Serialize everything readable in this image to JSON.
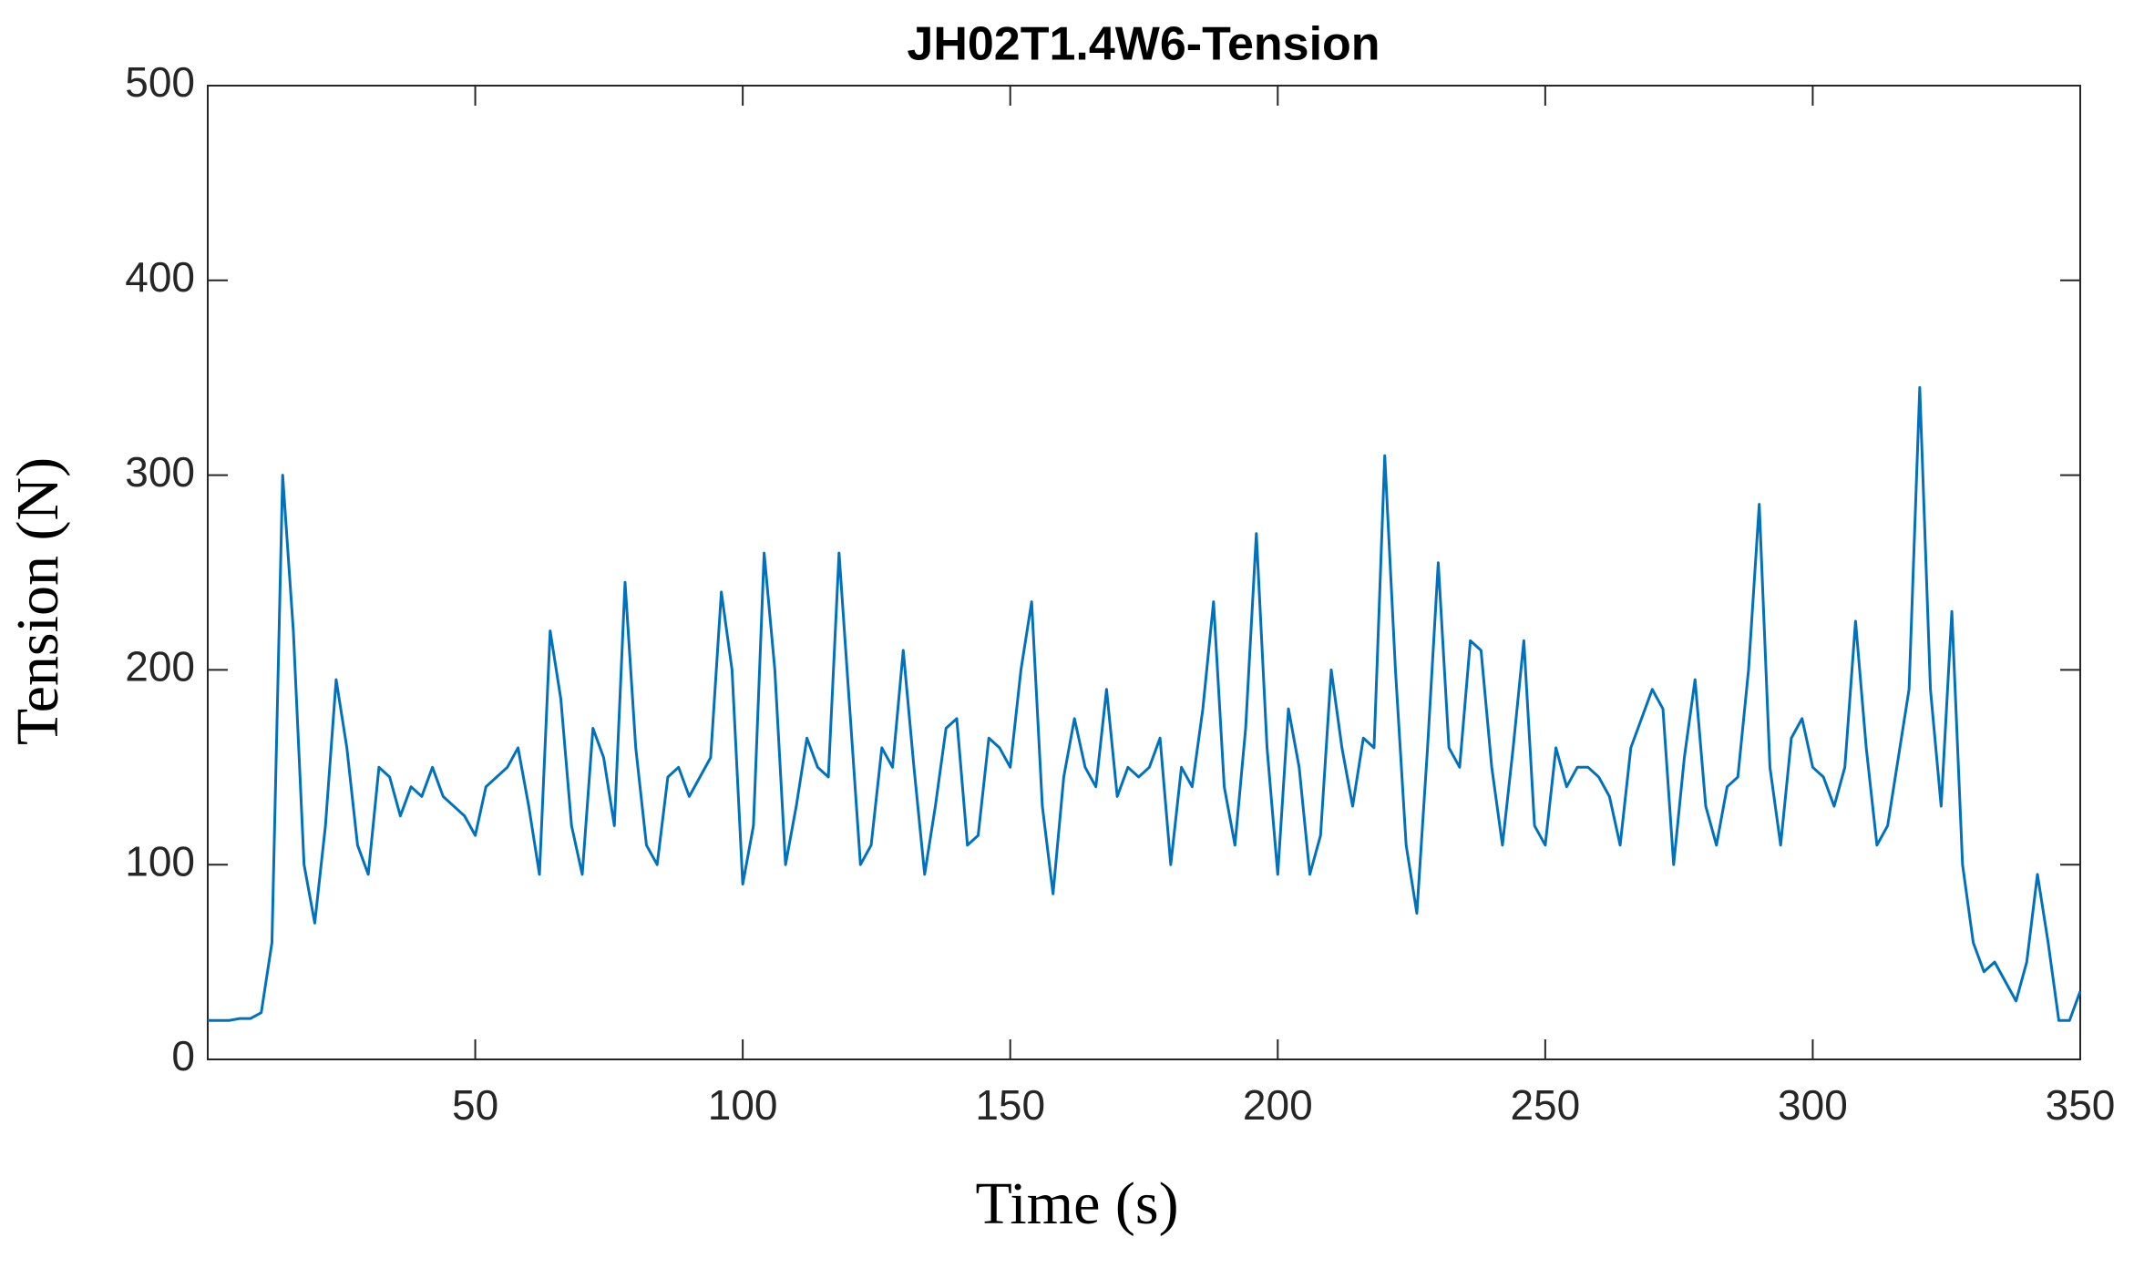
{
  "chart_data": {
    "type": "line",
    "title": "JH02T1.4W6-Tension",
    "x_label": "Time (s)",
    "y_label": "Tension (N)",
    "x": [
      0,
      2,
      4,
      6,
      8,
      10,
      12,
      14,
      16,
      18,
      20,
      22,
      24,
      26,
      28,
      30,
      32,
      34,
      36,
      38,
      40,
      42,
      44,
      46,
      48,
      50,
      52,
      54,
      56,
      58,
      60,
      62,
      64,
      66,
      68,
      70,
      72,
      74,
      76,
      78,
      80,
      82,
      84,
      86,
      88,
      90,
      92,
      94,
      96,
      98,
      100,
      102,
      104,
      106,
      108,
      110,
      112,
      114,
      116,
      118,
      120,
      122,
      124,
      126,
      128,
      130,
      132,
      134,
      136,
      138,
      140,
      142,
      144,
      146,
      148,
      150,
      152,
      154,
      156,
      158,
      160,
      162,
      164,
      166,
      168,
      170,
      172,
      174,
      176,
      178,
      180,
      182,
      184,
      186,
      188,
      190,
      192,
      194,
      196,
      198,
      200,
      202,
      204,
      206,
      208,
      210,
      212,
      214,
      216,
      218,
      220,
      222,
      224,
      226,
      228,
      230,
      232,
      234,
      236,
      238,
      240,
      242,
      244,
      246,
      248,
      250,
      252,
      254,
      256,
      258,
      260,
      262,
      264,
      266,
      268,
      270,
      272,
      274,
      276,
      278,
      280,
      282,
      284,
      286,
      288,
      290,
      292,
      294,
      296,
      298,
      300,
      302,
      304,
      306,
      308,
      310,
      312,
      314,
      316,
      318,
      320,
      322,
      324,
      326,
      328,
      330,
      332,
      334,
      336,
      338,
      340,
      342,
      344,
      346,
      348,
      350
    ],
    "series": [
      {
        "name": "Tension",
        "color": "#0072bd",
        "values": [
          20,
          20,
          20,
          21,
          21,
          24,
          60,
          300,
          220,
          100,
          70,
          120,
          195,
          160,
          110,
          95,
          150,
          145,
          125,
          140,
          135,
          150,
          135,
          130,
          125,
          115,
          140,
          145,
          150,
          160,
          130,
          95,
          220,
          185,
          120,
          95,
          170,
          155,
          120,
          245,
          160,
          110,
          100,
          145,
          150,
          135,
          145,
          155,
          240,
          200,
          90,
          120,
          260,
          200,
          100,
          130,
          165,
          150,
          145,
          260,
          180,
          100,
          110,
          160,
          150,
          210,
          150,
          95,
          130,
          170,
          175,
          110,
          115,
          165,
          160,
          150,
          200,
          235,
          130,
          85,
          145,
          175,
          150,
          140,
          190,
          135,
          150,
          145,
          150,
          165,
          100,
          150,
          140,
          180,
          235,
          140,
          110,
          170,
          270,
          160,
          95,
          180,
          150,
          95,
          115,
          200,
          160,
          130,
          165,
          160,
          310,
          200,
          110,
          75,
          160,
          255,
          160,
          150,
          215,
          210,
          150,
          110,
          160,
          215,
          120,
          110,
          160,
          140,
          150,
          150,
          145,
          135,
          110,
          160,
          175,
          190,
          180,
          100,
          155,
          195,
          130,
          110,
          140,
          145,
          200,
          285,
          150,
          110,
          165,
          175,
          150,
          145,
          130,
          150,
          225,
          160,
          110,
          120,
          155,
          190,
          345,
          190,
          130,
          230,
          100,
          60,
          45,
          50,
          40,
          30,
          50,
          95,
          60,
          20,
          20,
          35
        ]
      }
    ],
    "xlim": [
      0,
      350
    ],
    "xticks": [
      50,
      100,
      150,
      200,
      250,
      300,
      350
    ],
    "ylim": [
      0,
      500
    ],
    "yticks": [
      0,
      100,
      200,
      300,
      400,
      500
    ],
    "grid": false
  }
}
